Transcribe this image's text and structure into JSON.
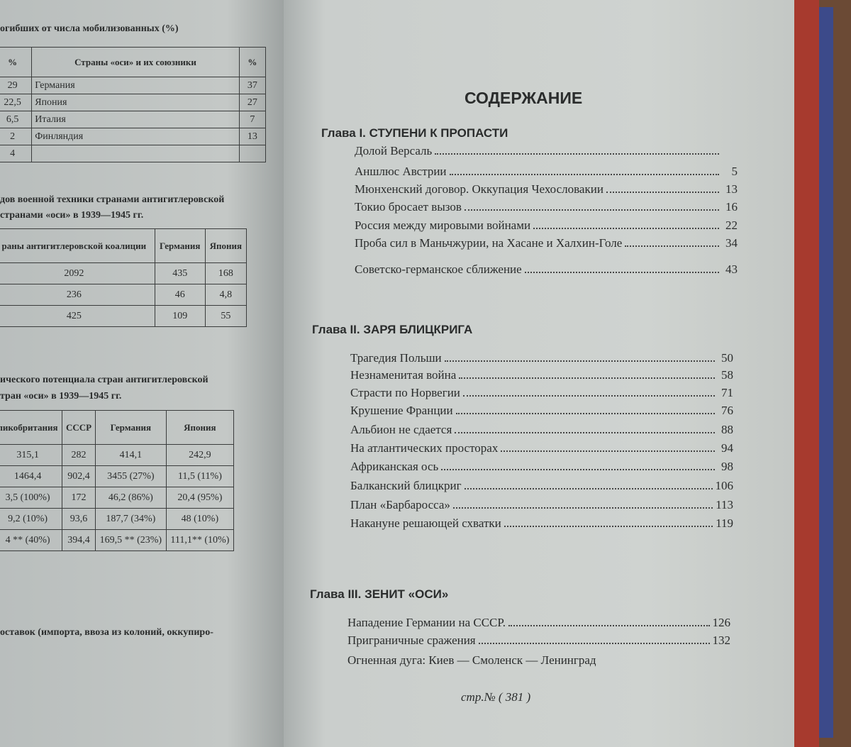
{
  "left_page": {
    "caption1": "огибших от числа мобилизованных (%)",
    "table1": {
      "headers": [
        "%",
        "Страны «оси» и их союзники",
        "%"
      ],
      "rows": [
        [
          "29",
          "Германия",
          "37"
        ],
        [
          "22,5",
          "Япония",
          "27"
        ],
        [
          "6,5",
          "Италия",
          "7"
        ],
        [
          "2",
          "Финляндия",
          "13"
        ],
        [
          "4",
          "",
          ""
        ]
      ]
    },
    "caption2a": "дов военной техники странами антигитлеровской",
    "caption2b": "странами «оси» в 1939—1945 гг.",
    "table2": {
      "headers": [
        "раны антигитлеровской коалиции",
        "Германия",
        "Япония"
      ],
      "rows": [
        [
          "2092",
          "435",
          "168"
        ],
        [
          "236",
          "46",
          "4,8"
        ],
        [
          "425",
          "109",
          "55"
        ]
      ]
    },
    "caption3a": "ического потенциала стран антигитлеровской",
    "caption3b": "тран «оси» в 1939—1945 гг.",
    "table3": {
      "headers": [
        "ликобритания",
        "СССР",
        "Германия",
        "Япония"
      ],
      "rows": [
        [
          "315,1",
          "282",
          "414,1",
          "242,9"
        ],
        [
          "1464,4",
          "902,4",
          "3455 (27%)",
          "11,5 (11%)"
        ],
        [
          "3,5 (100%)",
          "172",
          "46,2 (86%)",
          "20,4 (95%)"
        ],
        [
          "9,2 (10%)",
          "93,6",
          "187,7 (34%)",
          "48 (10%)"
        ],
        [
          "4 ** (40%)",
          "394,4",
          "169,5 ** (23%)",
          "111,1** (10%)"
        ]
      ]
    },
    "footer_text": "оставок (импорта, ввоза из колоний, оккупиро-"
  },
  "right_page": {
    "title": "СОДЕРЖАНИЕ",
    "chapters": [
      {
        "title": "Глава I. СТУПЕНИ К ПРОПАСТИ",
        "entries": [
          {
            "label": "Долой Версаль",
            "page": ""
          },
          {
            "label": "Аншлюс Австрии",
            "page": "5"
          },
          {
            "label": "Мюнхенский договор. Оккупация Чехословакии",
            "page": "13"
          },
          {
            "label": "Токио бросает вызов",
            "page": "16"
          },
          {
            "label": "Россия между мировыми войнами",
            "page": "22"
          },
          {
            "label": "Проба сил в Маньчжурии, на Хасане и Халхин-Голе",
            "page": "34"
          },
          {
            "label": "Советско-германское сближение",
            "page": "43"
          }
        ]
      },
      {
        "title": "Глава II. ЗАРЯ БЛИЦКРИГА",
        "entries": [
          {
            "label": "Трагедия Польши",
            "page": "50"
          },
          {
            "label": "Незнаменитая война",
            "page": "58"
          },
          {
            "label": "Страсти по Норвегии",
            "page": "71"
          },
          {
            "label": "Крушение Франции",
            "page": "76"
          },
          {
            "label": "Альбион не сдается",
            "page": "88"
          },
          {
            "label": "На атлантических просторах",
            "page": "94"
          },
          {
            "label": "Африканская ось",
            "page": "98"
          },
          {
            "label": "Балканский блицкриг",
            "page": "106"
          },
          {
            "label": "План «Барбаросса»",
            "page": "113"
          },
          {
            "label": "Накануне решающей схватки",
            "page": "119"
          }
        ]
      },
      {
        "title": "Глава III. ЗЕНИТ «ОСИ»",
        "entries": [
          {
            "label": "Нападение Германии на СССР.",
            "page": "126"
          },
          {
            "label": "Приграничные сражения",
            "page": "132"
          },
          {
            "label": "Огненная дуга: Киев — Смоленск — Ленинград",
            "page": ""
          }
        ]
      }
    ],
    "page_number": "стр.№ ( 381 )"
  }
}
